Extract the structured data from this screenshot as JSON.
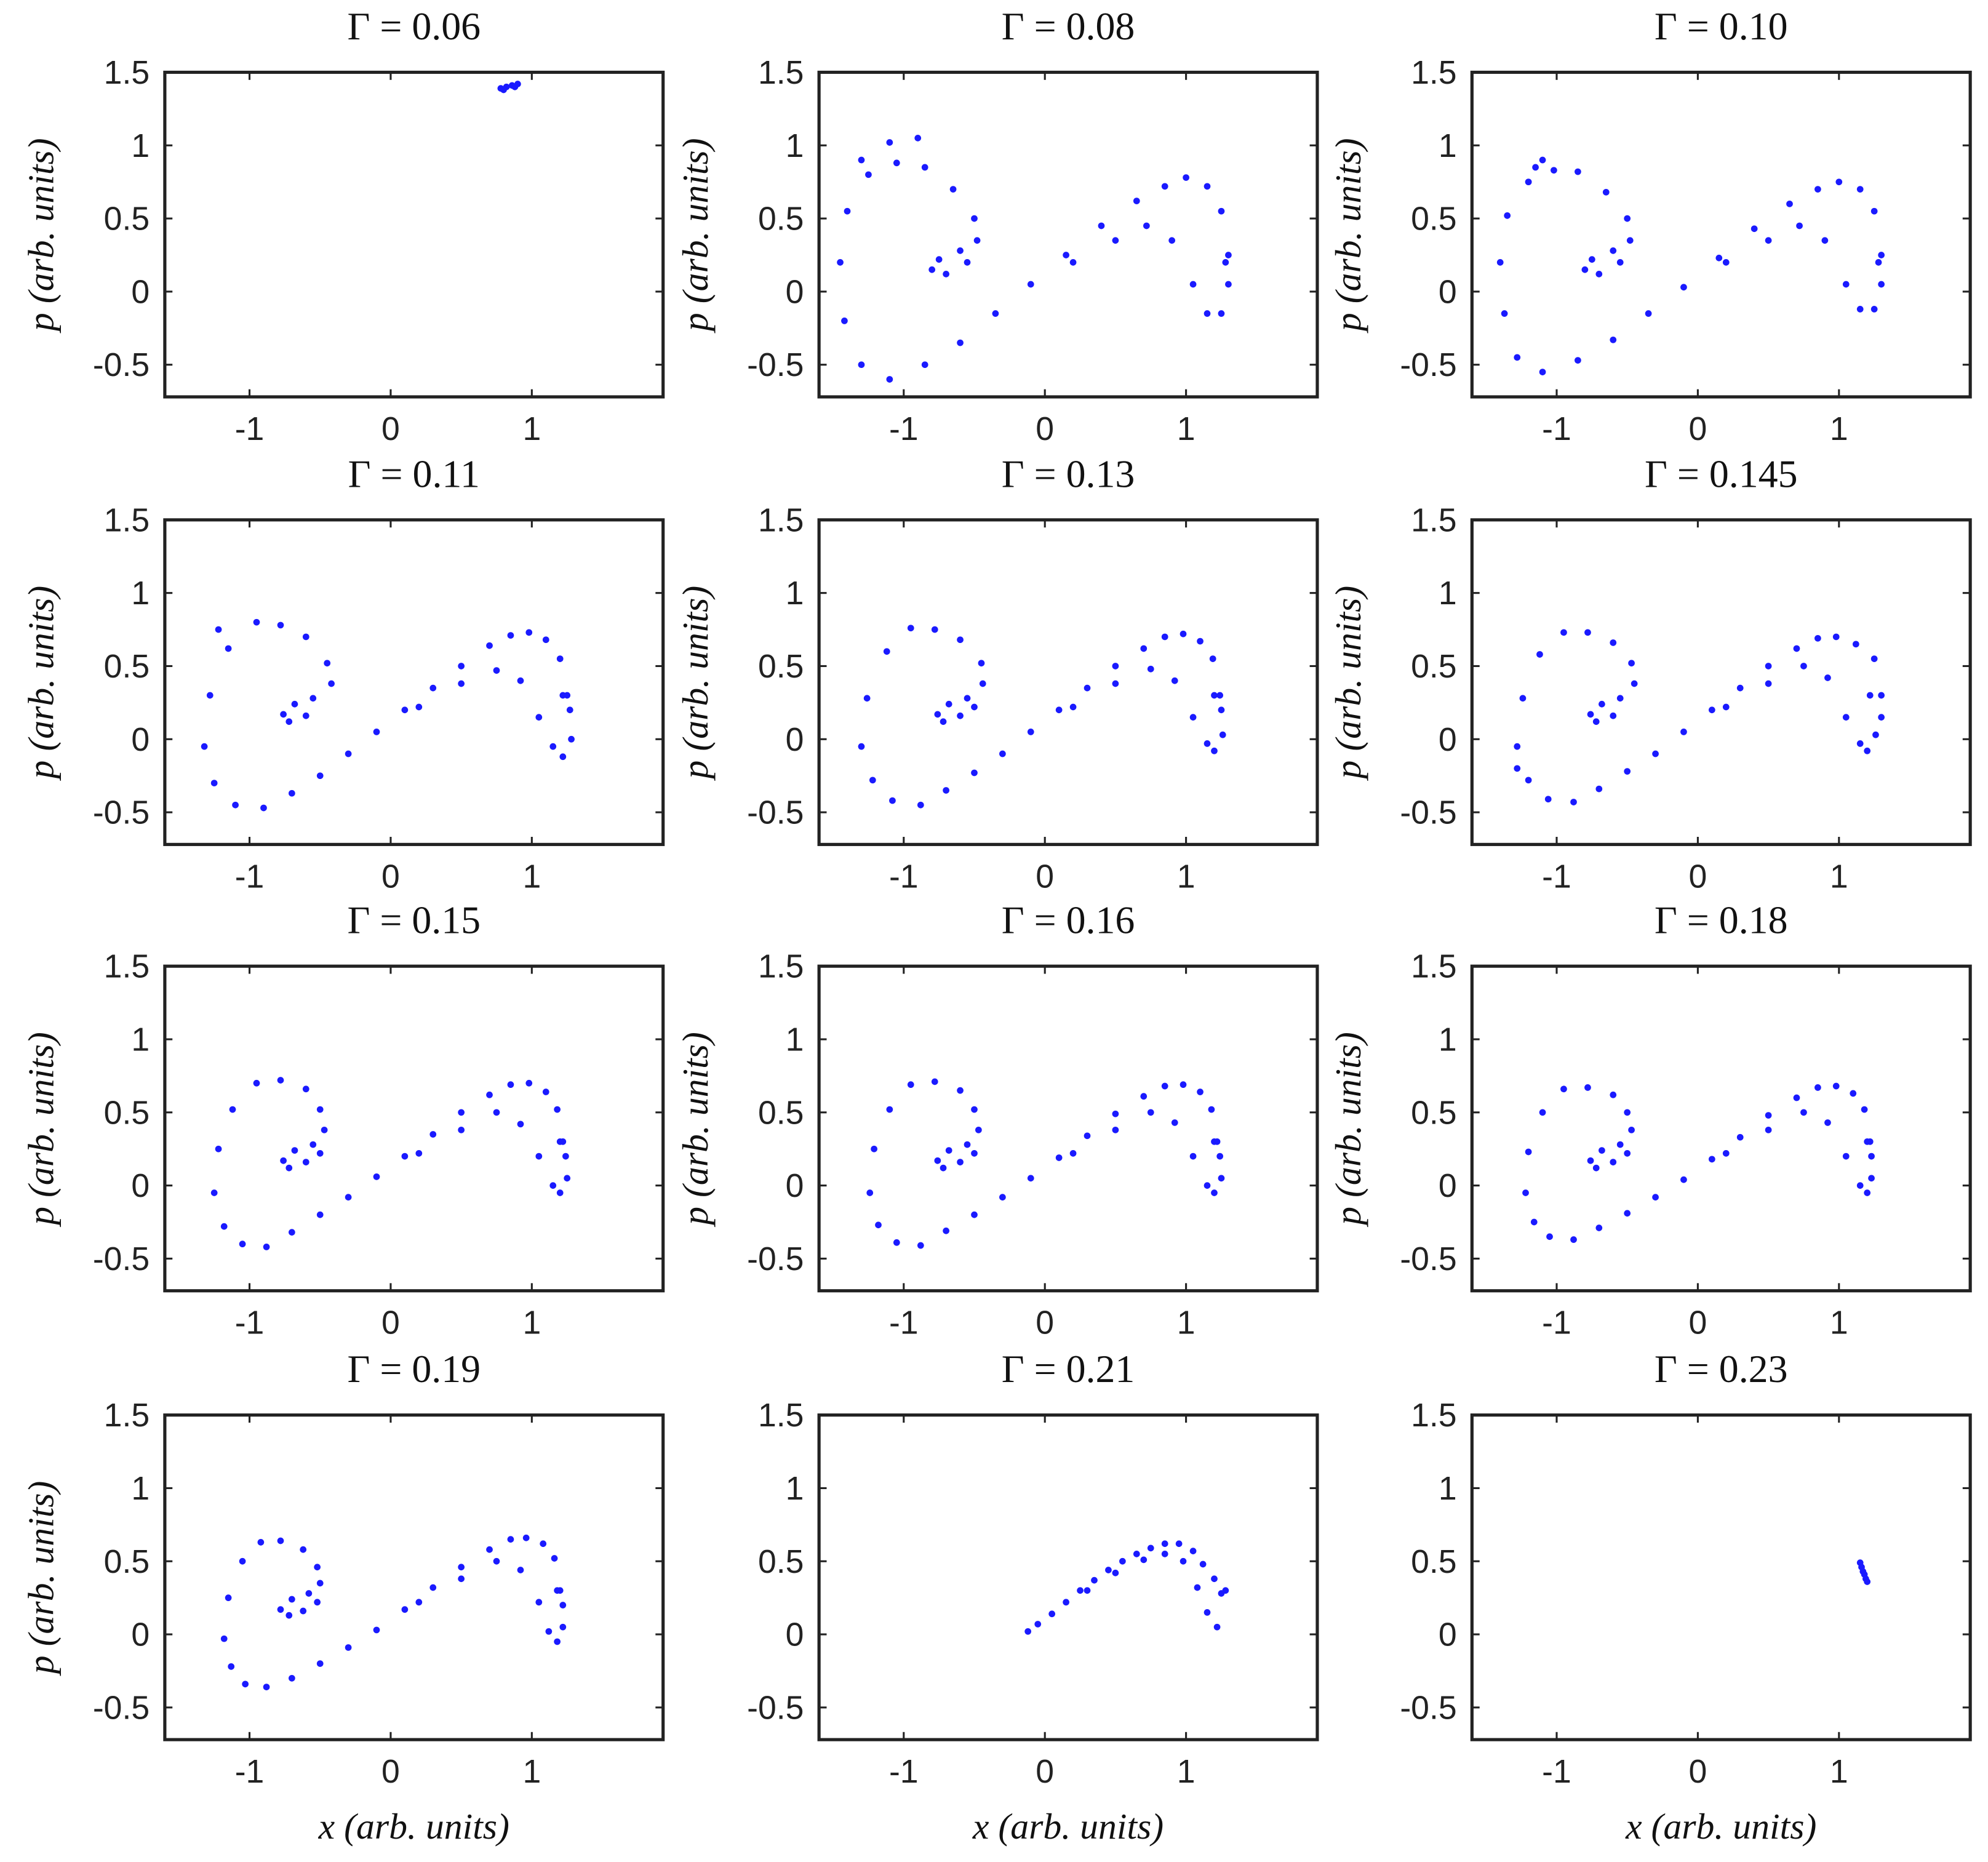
{
  "chart_data": [
    {
      "type": "scatter",
      "title": "Γ = 0.06",
      "ylabel": "p (arb. units)",
      "color": "#1a1aff",
      "xlim": [
        -1.6,
        1.93
      ],
      "ylim": [
        -0.72,
        1.5
      ],
      "xticks": [
        -1,
        0,
        1
      ],
      "yticks": [
        -0.5,
        0,
        0.5,
        1,
        1.5
      ],
      "x": [
        0.78,
        0.82,
        0.86,
        0.9,
        0.88,
        0.8
      ],
      "y": [
        1.39,
        1.4,
        1.41,
        1.42,
        1.4,
        1.38
      ]
    },
    {
      "type": "scatter",
      "title": "Γ = 0.08",
      "ylabel": "p (arb. units)",
      "color": "#1a1aff",
      "xlim": [
        -1.6,
        1.93
      ],
      "ylim": [
        -0.72,
        1.5
      ],
      "xticks": [
        -1,
        0,
        1
      ],
      "yticks": [
        -0.5,
        0,
        0.5,
        1,
        1.5
      ],
      "x": [
        1.3,
        1.25,
        1.15,
        1.0,
        0.85,
        0.65,
        0.4,
        0.15,
        -0.1,
        -0.35,
        -0.6,
        -0.85,
        -1.1,
        -1.3,
        -1.42,
        -1.45,
        -1.4,
        -1.25,
        -1.05,
        -0.85,
        -0.65,
        -0.5,
        -0.48,
        -0.6,
        -0.75,
        -0.8,
        -0.7,
        -0.55,
        -0.9,
        -1.1,
        -1.3,
        0.2,
        0.5,
        0.72,
        0.9,
        1.05,
        1.15,
        1.25,
        1.3,
        1.28
      ],
      "y": [
        0.25,
        0.55,
        0.72,
        0.78,
        0.72,
        0.62,
        0.45,
        0.25,
        0.05,
        -0.15,
        -0.35,
        -0.5,
        -0.6,
        -0.5,
        -0.2,
        0.2,
        0.55,
        0.8,
        0.88,
        0.85,
        0.7,
        0.5,
        0.35,
        0.28,
        0.22,
        0.15,
        0.12,
        0.2,
        1.05,
        1.02,
        0.9,
        0.2,
        0.35,
        0.45,
        0.35,
        0.05,
        -0.15,
        -0.15,
        0.05,
        0.2
      ]
    },
    {
      "type": "scatter",
      "title": "Γ = 0.10",
      "ylabel": "p (arb. units)",
      "color": "#1a1aff",
      "xlim": [
        -1.6,
        1.93
      ],
      "ylim": [
        -0.72,
        1.5
      ],
      "xticks": [
        -1,
        0,
        1
      ],
      "yticks": [
        -0.5,
        0,
        0.5,
        1,
        1.5
      ],
      "x": [
        1.3,
        1.25,
        1.15,
        1.0,
        0.85,
        0.65,
        0.4,
        0.15,
        -0.1,
        -0.35,
        -0.6,
        -0.85,
        -1.1,
        -1.28,
        -1.37,
        -1.4,
        -1.35,
        -1.2,
        -1.02,
        -0.85,
        -0.65,
        -0.5,
        -0.48,
        -0.6,
        -0.75,
        -0.8,
        -0.7,
        -0.55,
        -1.1,
        -1.15,
        -1.2,
        0.2,
        0.5,
        0.72,
        0.9,
        1.05,
        1.15,
        1.25,
        1.3,
        1.28
      ],
      "y": [
        0.25,
        0.55,
        0.7,
        0.75,
        0.7,
        0.6,
        0.43,
        0.23,
        0.03,
        -0.15,
        -0.33,
        -0.47,
        -0.55,
        -0.45,
        -0.15,
        0.2,
        0.52,
        0.75,
        0.83,
        0.82,
        0.68,
        0.5,
        0.35,
        0.28,
        0.22,
        0.15,
        0.12,
        0.2,
        0.9,
        0.85,
        0.75,
        0.2,
        0.35,
        0.45,
        0.35,
        0.05,
        -0.12,
        -0.12,
        0.05,
        0.2
      ]
    },
    {
      "type": "scatter",
      "title": "Γ = 0.11",
      "ylabel": "p (arb. units)",
      "color": "#1a1aff",
      "xlim": [
        -1.6,
        1.93
      ],
      "ylim": [
        -0.72,
        1.5
      ],
      "xticks": [
        -1,
        0,
        1
      ],
      "yticks": [
        -0.5,
        0,
        0.5,
        1,
        1.5
      ],
      "x": [
        1.25,
        1.2,
        1.1,
        0.98,
        0.85,
        0.7,
        0.5,
        0.3,
        0.1,
        -0.1,
        -0.3,
        -0.5,
        -0.7,
        -0.9,
        -1.1,
        -1.25,
        -1.32,
        -1.28,
        -1.15,
        -0.95,
        -0.78,
        -0.6,
        -0.45,
        -0.42,
        -0.55,
        -0.68,
        -0.76,
        -0.72,
        -0.6,
        -1.22,
        0.2,
        0.5,
        0.75,
        0.92,
        1.05,
        1.15,
        1.22,
        1.28,
        1.27,
        1.22
      ],
      "y": [
        0.3,
        0.55,
        0.68,
        0.73,
        0.71,
        0.64,
        0.5,
        0.35,
        0.2,
        0.05,
        -0.1,
        -0.25,
        -0.37,
        -0.47,
        -0.45,
        -0.3,
        -0.05,
        0.3,
        0.62,
        0.8,
        0.78,
        0.7,
        0.52,
        0.38,
        0.28,
        0.24,
        0.17,
        0.12,
        0.16,
        0.75,
        0.22,
        0.38,
        0.47,
        0.4,
        0.15,
        -0.05,
        -0.12,
        0.0,
        0.2,
        0.3
      ]
    },
    {
      "type": "scatter",
      "title": "Γ = 0.13",
      "ylabel": "p (arb. units)",
      "color": "#1a1aff",
      "xlim": [
        -1.6,
        1.93
      ],
      "ylim": [
        -0.72,
        1.5
      ],
      "xticks": [
        -1,
        0,
        1
      ],
      "yticks": [
        -0.5,
        0,
        0.5,
        1,
        1.5
      ],
      "x": [
        1.24,
        1.19,
        1.1,
        0.98,
        0.85,
        0.7,
        0.5,
        0.3,
        0.1,
        -0.1,
        -0.3,
        -0.5,
        -0.7,
        -0.88,
        -1.08,
        -1.22,
        -1.3,
        -1.26,
        -1.12,
        -0.95,
        -0.78,
        -0.6,
        -0.45,
        -0.44,
        -0.55,
        -0.68,
        -0.76,
        -0.72,
        -0.6,
        -0.5,
        0.2,
        0.5,
        0.75,
        0.92,
        1.05,
        1.15,
        1.2,
        1.26,
        1.25,
        1.2
      ],
      "y": [
        0.3,
        0.55,
        0.67,
        0.72,
        0.7,
        0.62,
        0.5,
        0.35,
        0.2,
        0.05,
        -0.1,
        -0.23,
        -0.35,
        -0.45,
        -0.42,
        -0.28,
        -0.05,
        0.28,
        0.6,
        0.76,
        0.75,
        0.68,
        0.52,
        0.38,
        0.28,
        0.24,
        0.17,
        0.12,
        0.16,
        0.22,
        0.22,
        0.38,
        0.48,
        0.4,
        0.15,
        -0.03,
        -0.08,
        0.03,
        0.2,
        0.3
      ]
    },
    {
      "type": "scatter",
      "title": "Γ = 0.145",
      "ylabel": "p (arb. units)",
      "color": "#1a1aff",
      "xlim": [
        -1.6,
        1.93
      ],
      "ylim": [
        -0.72,
        1.5
      ],
      "xticks": [
        -1,
        0,
        1
      ],
      "yticks": [
        -0.5,
        0,
        0.5,
        1,
        1.5
      ],
      "x": [
        1.3,
        1.25,
        1.12,
        0.98,
        0.85,
        0.7,
        0.5,
        0.3,
        0.1,
        -0.1,
        -0.3,
        -0.5,
        -0.7,
        -0.88,
        -1.06,
        -1.2,
        -1.28,
        -1.24,
        -1.12,
        -0.95,
        -0.78,
        -0.6,
        -0.47,
        -0.45,
        -0.55,
        -0.68,
        -0.76,
        -0.72,
        -0.6,
        -1.28,
        0.2,
        0.5,
        0.75,
        0.92,
        1.05,
        1.15,
        1.2,
        1.26,
        1.3,
        1.22
      ],
      "y": [
        0.3,
        0.55,
        0.65,
        0.7,
        0.69,
        0.62,
        0.5,
        0.35,
        0.2,
        0.05,
        -0.1,
        -0.22,
        -0.34,
        -0.43,
        -0.41,
        -0.28,
        -0.05,
        0.28,
        0.58,
        0.73,
        0.73,
        0.66,
        0.52,
        0.38,
        0.28,
        0.24,
        0.17,
        0.12,
        0.16,
        -0.2,
        0.22,
        0.38,
        0.5,
        0.42,
        0.15,
        -0.03,
        -0.08,
        0.03,
        0.15,
        0.3
      ]
    },
    {
      "type": "scatter",
      "title": "Γ = 0.15",
      "ylabel": "p (arb. units)",
      "color": "#1a1aff",
      "xlim": [
        -1.6,
        1.93
      ],
      "ylim": [
        -0.72,
        1.5
      ],
      "xticks": [
        -1,
        0,
        1
      ],
      "yticks": [
        -0.5,
        0,
        0.5,
        1,
        1.5
      ],
      "x": [
        1.22,
        1.18,
        1.1,
        0.98,
        0.85,
        0.7,
        0.5,
        0.3,
        0.1,
        -0.1,
        -0.3,
        -0.5,
        -0.7,
        -0.88,
        -1.05,
        -1.18,
        -1.25,
        -1.22,
        -1.12,
        -0.95,
        -0.78,
        -0.6,
        -0.5,
        -0.47,
        -0.55,
        -0.68,
        -0.76,
        -0.72,
        -0.6,
        -0.5,
        0.2,
        0.5,
        0.75,
        0.92,
        1.05,
        1.15,
        1.2,
        1.25,
        1.24,
        1.2
      ],
      "y": [
        0.3,
        0.52,
        0.64,
        0.7,
        0.69,
        0.62,
        0.5,
        0.35,
        0.2,
        0.06,
        -0.08,
        -0.2,
        -0.32,
        -0.42,
        -0.4,
        -0.28,
        -0.05,
        0.25,
        0.52,
        0.7,
        0.72,
        0.66,
        0.52,
        0.38,
        0.28,
        0.24,
        0.17,
        0.12,
        0.16,
        0.22,
        0.22,
        0.38,
        0.5,
        0.42,
        0.2,
        0.0,
        -0.05,
        0.05,
        0.2,
        0.3
      ]
    },
    {
      "type": "scatter",
      "title": "Γ = 0.16",
      "ylabel": "p (arb. units)",
      "color": "#1a1aff",
      "xlim": [
        -1.6,
        1.93
      ],
      "ylim": [
        -0.72,
        1.5
      ],
      "xticks": [
        -1,
        0,
        1
      ],
      "yticks": [
        -0.5,
        0,
        0.5,
        1,
        1.5
      ],
      "x": [
        1.22,
        1.18,
        1.1,
        0.98,
        0.85,
        0.7,
        0.5,
        0.3,
        0.1,
        -0.1,
        -0.3,
        -0.5,
        -0.7,
        -0.88,
        -1.05,
        -1.18,
        -1.24,
        -1.21,
        -1.1,
        -0.95,
        -0.78,
        -0.6,
        -0.5,
        -0.47,
        -0.55,
        -0.68,
        -0.76,
        -0.72,
        -0.6,
        -0.5,
        0.2,
        0.5,
        0.75,
        0.92,
        1.05,
        1.15,
        1.2,
        1.25,
        1.24,
        1.2
      ],
      "y": [
        0.3,
        0.52,
        0.64,
        0.69,
        0.68,
        0.61,
        0.49,
        0.34,
        0.19,
        0.05,
        -0.08,
        -0.2,
        -0.31,
        -0.41,
        -0.39,
        -0.27,
        -0.05,
        0.25,
        0.52,
        0.69,
        0.71,
        0.65,
        0.52,
        0.38,
        0.28,
        0.24,
        0.17,
        0.12,
        0.16,
        0.22,
        0.22,
        0.38,
        0.5,
        0.43,
        0.2,
        0.0,
        -0.05,
        0.05,
        0.2,
        0.3
      ]
    },
    {
      "type": "scatter",
      "title": "Γ = 0.18",
      "ylabel": "p (arb. units)",
      "color": "#1a1aff",
      "xlim": [
        -1.6,
        1.93
      ],
      "ylim": [
        -0.72,
        1.5
      ],
      "xticks": [
        -1,
        0,
        1
      ],
      "yticks": [
        -0.5,
        0,
        0.5,
        1,
        1.5
      ],
      "x": [
        1.22,
        1.18,
        1.1,
        0.98,
        0.85,
        0.7,
        0.5,
        0.3,
        0.1,
        -0.1,
        -0.3,
        -0.5,
        -0.7,
        -0.88,
        -1.05,
        -1.16,
        -1.22,
        -1.2,
        -1.1,
        -0.95,
        -0.78,
        -0.6,
        -0.5,
        -0.47,
        -0.55,
        -0.68,
        -0.76,
        -0.72,
        -0.6,
        -0.5,
        0.2,
        0.5,
        0.75,
        0.92,
        1.05,
        1.15,
        1.2,
        1.23,
        1.23,
        1.2
      ],
      "y": [
        0.3,
        0.52,
        0.63,
        0.68,
        0.67,
        0.6,
        0.48,
        0.33,
        0.18,
        0.04,
        -0.08,
        -0.19,
        -0.29,
        -0.37,
        -0.35,
        -0.25,
        -0.05,
        0.23,
        0.5,
        0.66,
        0.67,
        0.62,
        0.5,
        0.38,
        0.28,
        0.24,
        0.17,
        0.12,
        0.16,
        0.22,
        0.22,
        0.38,
        0.5,
        0.43,
        0.2,
        0.0,
        -0.05,
        0.05,
        0.2,
        0.3
      ]
    },
    {
      "type": "scatter",
      "title": "Γ = 0.19",
      "ylabel": "p (arb. units)",
      "xlabel": "x (arb. units)",
      "color": "#1a1aff",
      "xlim": [
        -1.6,
        1.93
      ],
      "ylim": [
        -0.72,
        1.5
      ],
      "xticks": [
        -1,
        0,
        1
      ],
      "yticks": [
        -0.5,
        0,
        0.5,
        1,
        1.5
      ],
      "x": [
        1.2,
        1.16,
        1.08,
        0.96,
        0.85,
        0.7,
        0.5,
        0.3,
        0.1,
        -0.1,
        -0.3,
        -0.5,
        -0.7,
        -0.88,
        -1.03,
        -1.13,
        -1.18,
        -1.15,
        -1.05,
        -0.92,
        -0.78,
        -0.62,
        -0.52,
        -0.5,
        -0.58,
        -0.7,
        -0.78,
        -0.72,
        -0.62,
        -0.52,
        0.2,
        0.5,
        0.75,
        0.92,
        1.05,
        1.12,
        1.18,
        1.22,
        1.22,
        1.18
      ],
      "y": [
        0.3,
        0.52,
        0.62,
        0.66,
        0.65,
        0.58,
        0.46,
        0.32,
        0.17,
        0.03,
        -0.09,
        -0.2,
        -0.3,
        -0.36,
        -0.34,
        -0.22,
        -0.03,
        0.25,
        0.5,
        0.63,
        0.64,
        0.58,
        0.46,
        0.35,
        0.28,
        0.24,
        0.17,
        0.13,
        0.16,
        0.22,
        0.22,
        0.38,
        0.5,
        0.44,
        0.22,
        0.02,
        -0.05,
        0.05,
        0.2,
        0.3
      ]
    },
    {
      "type": "scatter",
      "title": "Γ = 0.21",
      "xlabel": "x (arb. units)",
      "color": "#1a1aff",
      "xlim": [
        -1.6,
        1.93
      ],
      "ylim": [
        -0.72,
        1.5
      ],
      "xticks": [
        -1,
        0,
        1
      ],
      "yticks": [
        -0.5,
        0,
        0.5,
        1,
        1.5
      ],
      "x": [
        -0.12,
        -0.05,
        0.05,
        0.15,
        0.25,
        0.35,
        0.45,
        0.55,
        0.65,
        0.75,
        0.85,
        0.95,
        1.05,
        1.12,
        1.2,
        1.25,
        0.3,
        0.5,
        0.7,
        0.85,
        0.98,
        1.08,
        1.15,
        1.22,
        1.28
      ],
      "y": [
        0.02,
        0.07,
        0.14,
        0.22,
        0.3,
        0.37,
        0.44,
        0.5,
        0.55,
        0.59,
        0.62,
        0.62,
        0.57,
        0.48,
        0.38,
        0.28,
        0.3,
        0.42,
        0.51,
        0.55,
        0.5,
        0.32,
        0.15,
        0.05,
        0.3
      ]
    },
    {
      "type": "scatter",
      "title": "Γ = 0.23",
      "xlabel": "x (arb. units)",
      "color": "#1a1aff",
      "xlim": [
        -1.6,
        1.93
      ],
      "ylim": [
        -0.72,
        1.5
      ],
      "xticks": [
        -1,
        0,
        1
      ],
      "yticks": [
        -0.5,
        0,
        0.5,
        1,
        1.5
      ],
      "x": [
        1.15,
        1.16,
        1.17,
        1.18,
        1.19,
        1.2
      ],
      "y": [
        0.49,
        0.46,
        0.43,
        0.41,
        0.38,
        0.36
      ]
    }
  ]
}
